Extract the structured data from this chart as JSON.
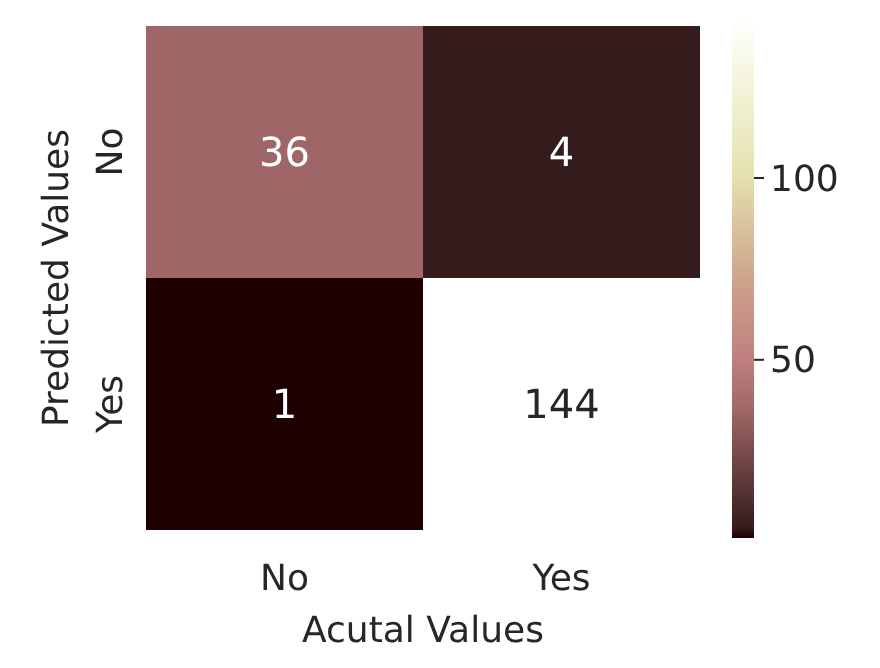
{
  "chart_data": {
    "type": "heatmap",
    "xlabel": "Acutal Values",
    "ylabel": "Predicted Values",
    "categories": [
      "No",
      "Yes"
    ],
    "y_categories": [
      "No",
      "Yes"
    ],
    "cells": [
      [
        36,
        4
      ],
      [
        1,
        144
      ]
    ],
    "data_labels": true,
    "clim": [
      1,
      144
    ],
    "cticks": [
      50,
      100
    ]
  }
}
